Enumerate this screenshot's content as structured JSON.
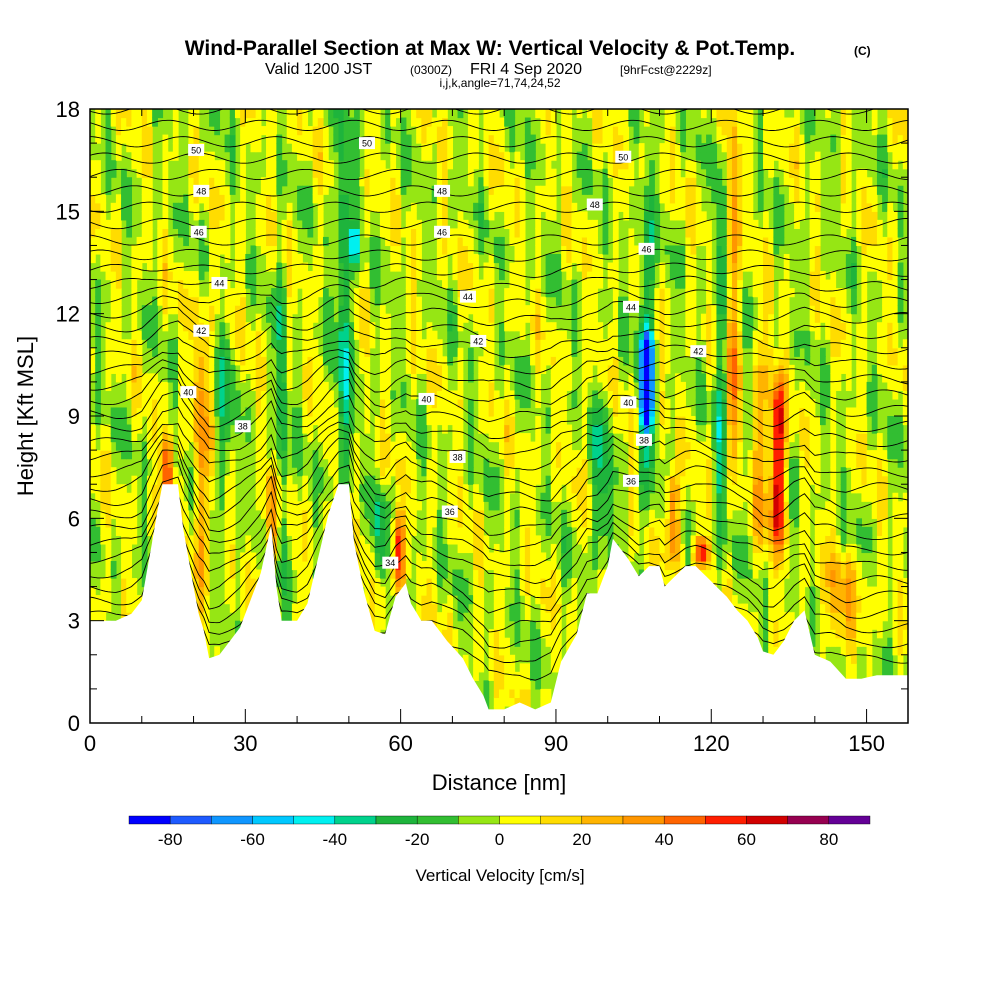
{
  "title": {
    "main": "Wind-Parallel Section at Max W: Vertical Velocity & Pot.Temp.",
    "main_mark": "(C)",
    "valid_prefix": "Valid 1200 JST",
    "valid_utc": "(0300Z)",
    "valid_date": "FRI 4 Sep 2020",
    "forecast": "[9hrFcst@2229z]",
    "indices": "i,j,k,angle=71,74,24,52"
  },
  "chart_data": {
    "type": "heatmap",
    "xlabel": "Distance [nm]",
    "ylabel": "Height [Kft MSL]",
    "xlim": [
      0,
      158
    ],
    "ylim": [
      0,
      18
    ],
    "x_ticks": [
      0,
      30,
      60,
      90,
      120,
      150
    ],
    "y_ticks": [
      0,
      3,
      6,
      9,
      12,
      15,
      18
    ],
    "field": "Vertical Velocity [cm/s]",
    "colorbar": {
      "label": "Vertical Velocity [cm/s]",
      "ticks": [
        -80,
        -60,
        -40,
        -20,
        0,
        20,
        40,
        60,
        80
      ],
      "bins": [
        {
          "min": -90,
          "max": -80,
          "color": "#0000ff"
        },
        {
          "min": -80,
          "max": -70,
          "color": "#1e5aff"
        },
        {
          "min": -70,
          "max": -60,
          "color": "#0f96ff"
        },
        {
          "min": -60,
          "max": -50,
          "color": "#00c8ff"
        },
        {
          "min": -50,
          "max": -40,
          "color": "#00f0f0"
        },
        {
          "min": -40,
          "max": -30,
          "color": "#00d28c"
        },
        {
          "min": -30,
          "max": -20,
          "color": "#1eb43c"
        },
        {
          "min": -20,
          "max": -10,
          "color": "#32be32"
        },
        {
          "min": -10,
          "max": 0,
          "color": "#96e614"
        },
        {
          "min": 0,
          "max": 10,
          "color": "#ffff00"
        },
        {
          "min": 10,
          "max": 20,
          "color": "#ffdc00"
        },
        {
          "min": 20,
          "max": 30,
          "color": "#ffb400"
        },
        {
          "min": 30,
          "max": 40,
          "color": "#ff9600"
        },
        {
          "min": 40,
          "max": 50,
          "color": "#ff6400"
        },
        {
          "min": 50,
          "max": 60,
          "color": "#ff1e00"
        },
        {
          "min": 60,
          "max": 70,
          "color": "#d20000"
        },
        {
          "min": 70,
          "max": 80,
          "color": "#960050"
        },
        {
          "min": 80,
          "max": 90,
          "color": "#640096"
        }
      ]
    },
    "terrain_kft": [
      [
        0,
        3.0
      ],
      [
        5,
        3.0
      ],
      [
        8,
        3.2
      ],
      [
        10,
        3.6
      ],
      [
        12,
        5.3
      ],
      [
        13,
        6.2
      ],
      [
        14,
        7.0
      ],
      [
        17,
        7.0
      ],
      [
        18,
        5.7
      ],
      [
        20,
        4.0
      ],
      [
        21,
        3.2
      ],
      [
        22,
        2.7
      ],
      [
        23,
        1.9
      ],
      [
        25,
        2.0
      ],
      [
        27,
        2.4
      ],
      [
        29,
        2.8
      ],
      [
        31,
        3.6
      ],
      [
        33,
        4.4
      ],
      [
        35,
        5.8
      ],
      [
        36,
        4.0
      ],
      [
        37,
        3.0
      ],
      [
        40,
        3.0
      ],
      [
        42,
        3.5
      ],
      [
        44,
        4.8
      ],
      [
        46,
        6.1
      ],
      [
        48,
        7.0
      ],
      [
        50,
        7.0
      ],
      [
        51,
        5.3
      ],
      [
        53,
        3.8
      ],
      [
        55,
        2.7
      ],
      [
        57,
        2.6
      ],
      [
        59,
        3.7
      ],
      [
        61,
        4.1
      ],
      [
        62,
        3.5
      ],
      [
        64,
        3.0
      ],
      [
        66,
        3.0
      ],
      [
        69,
        2.4
      ],
      [
        72,
        1.9
      ],
      [
        74,
        1.3
      ],
      [
        76,
        0.8
      ],
      [
        77,
        0.4
      ],
      [
        80,
        0.4
      ],
      [
        83,
        0.6
      ],
      [
        86,
        0.4
      ],
      [
        89,
        0.6
      ],
      [
        91,
        1.8
      ],
      [
        94,
        2.6
      ],
      [
        96,
        3.8
      ],
      [
        98,
        3.8
      ],
      [
        100,
        4.6
      ],
      [
        101,
        5.4
      ],
      [
        103,
        5.0
      ],
      [
        104,
        4.8
      ],
      [
        106,
        4.3
      ],
      [
        108,
        4.6
      ],
      [
        110,
        4.6
      ],
      [
        111,
        4.0
      ],
      [
        113,
        4.3
      ],
      [
        115,
        4.6
      ],
      [
        117,
        4.6
      ],
      [
        119,
        4.3
      ],
      [
        121,
        4.0
      ],
      [
        123,
        3.7
      ],
      [
        125,
        3.3
      ],
      [
        127,
        3.0
      ],
      [
        129,
        2.5
      ],
      [
        130,
        2.1
      ],
      [
        132,
        2.0
      ],
      [
        134,
        2.4
      ],
      [
        136,
        3.0
      ],
      [
        138,
        3.3
      ],
      [
        140,
        2.0
      ],
      [
        143,
        1.8
      ],
      [
        146,
        1.3
      ],
      [
        149,
        1.3
      ],
      [
        152,
        1.4
      ],
      [
        155,
        1.4
      ],
      [
        158,
        1.4
      ]
    ],
    "contour_levels_C": [
      34,
      36,
      38,
      40,
      42,
      44,
      46,
      48,
      50
    ],
    "contour_labels": [
      {
        "x": 20.5,
        "y": 16.8,
        "text": "50"
      },
      {
        "x": 21.5,
        "y": 15.6,
        "text": "48"
      },
      {
        "x": 21.0,
        "y": 14.4,
        "text": "46"
      },
      {
        "x": 25.0,
        "y": 12.9,
        "text": "44"
      },
      {
        "x": 21.5,
        "y": 11.5,
        "text": "42"
      },
      {
        "x": 19.0,
        "y": 9.7,
        "text": "40"
      },
      {
        "x": 29.5,
        "y": 8.7,
        "text": "38"
      },
      {
        "x": 53.5,
        "y": 17.0,
        "text": "50"
      },
      {
        "x": 68.0,
        "y": 15.6,
        "text": "48"
      },
      {
        "x": 68.0,
        "y": 14.4,
        "text": "46"
      },
      {
        "x": 73.0,
        "y": 12.5,
        "text": "44"
      },
      {
        "x": 75.0,
        "y": 11.2,
        "text": "42"
      },
      {
        "x": 65.0,
        "y": 9.5,
        "text": "40"
      },
      {
        "x": 71.0,
        "y": 7.8,
        "text": "38"
      },
      {
        "x": 69.5,
        "y": 6.2,
        "text": "36"
      },
      {
        "x": 58.0,
        "y": 4.7,
        "text": "34"
      },
      {
        "x": 103.0,
        "y": 16.6,
        "text": "50"
      },
      {
        "x": 97.5,
        "y": 15.2,
        "text": "48"
      },
      {
        "x": 107.5,
        "y": 13.9,
        "text": "46"
      },
      {
        "x": 104.5,
        "y": 12.2,
        "text": "44"
      },
      {
        "x": 117.5,
        "y": 10.9,
        "text": "42"
      },
      {
        "x": 104.0,
        "y": 9.4,
        "text": "40"
      },
      {
        "x": 107.0,
        "y": 8.3,
        "text": "38"
      },
      {
        "x": 104.5,
        "y": 7.1,
        "text": "36"
      }
    ],
    "vertical_velocity_features": [
      {
        "x": 15,
        "y_base": 5.8,
        "y_top": 8.5,
        "width": 2.5,
        "peak_cms": 55
      },
      {
        "x": 21.5,
        "y_base": 3.2,
        "y_top": 12.5,
        "width": 3.5,
        "peak_cms": 30
      },
      {
        "x": 26,
        "y_base": 6.5,
        "y_top": 11.5,
        "width": 4,
        "peak_cms": -20
      },
      {
        "x": 35,
        "y_base": 4.5,
        "y_top": 7.5,
        "width": 2.5,
        "peak_cms": 45
      },
      {
        "x": 37,
        "y_base": 3.5,
        "y_top": 14,
        "width": 2.5,
        "peak_cms": -25
      },
      {
        "x": 49,
        "y_base": 7,
        "y_top": 18,
        "width": 4,
        "peak_cms": -30
      },
      {
        "x": 51,
        "y_base": 13.5,
        "y_top": 14.6,
        "width": 1.5,
        "peak_cms": -45
      },
      {
        "x": 59.5,
        "y_base": 3.8,
        "y_top": 6.2,
        "width": 2.5,
        "peak_cms": 55
      },
      {
        "x": 56,
        "y_base": 4,
        "y_top": 7,
        "width": 3,
        "peak_cms": -25
      },
      {
        "x": 99,
        "y_base": 4.5,
        "y_top": 10,
        "width": 4,
        "peak_cms": -25
      },
      {
        "x": 107.5,
        "y_base": 8.6,
        "y_top": 11.5,
        "width": 2.5,
        "peak_cms": -80
      },
      {
        "x": 107.5,
        "y_base": 6,
        "y_top": 16,
        "width": 3,
        "peak_cms": -35
      },
      {
        "x": 112.5,
        "y_base": 4.6,
        "y_top": 7.5,
        "width": 2.5,
        "peak_cms": 50
      },
      {
        "x": 118,
        "y_base": 4.6,
        "y_top": 5.5,
        "width": 3,
        "peak_cms": 55
      },
      {
        "x": 122,
        "y_base": 4.5,
        "y_top": 17,
        "width": 2.5,
        "peak_cms": -30
      },
      {
        "x": 124,
        "y_base": 7,
        "y_top": 18,
        "width": 2.5,
        "peak_cms": 40
      },
      {
        "x": 133,
        "y_base": 5,
        "y_top": 10.3,
        "width": 2.5,
        "peak_cms": 75
      },
      {
        "x": 130,
        "y_base": 4.5,
        "y_top": 12,
        "width": 4,
        "peak_cms": 25
      },
      {
        "x": 145,
        "y_base": 2,
        "y_top": 5,
        "width": 10,
        "peak_cms": 20
      }
    ]
  }
}
